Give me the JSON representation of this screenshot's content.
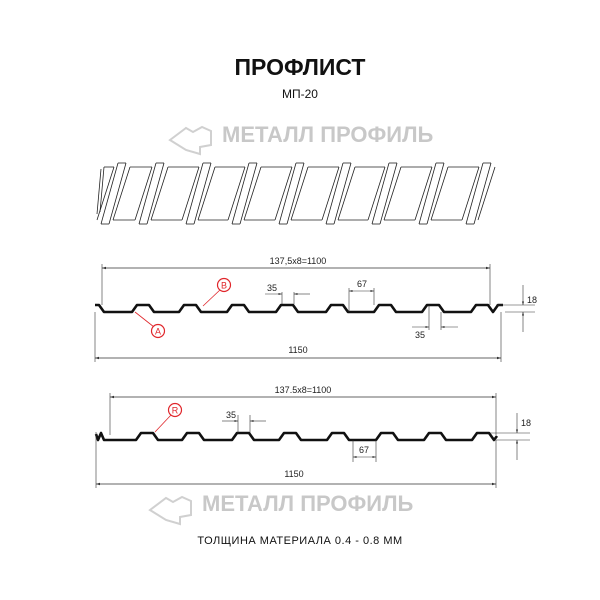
{
  "title": "ПРОФЛИСТ",
  "subtitle": "МП-20",
  "watermark": "МЕТАЛЛ ПРОФИЛЬ",
  "profile_a": {
    "width_label": "137,5x8=1100",
    "total_label": "1150",
    "top_label": "35",
    "bottom_label": "35",
    "pitch_label": "67",
    "height_label": "18",
    "marker_a": "A",
    "marker_b": "B"
  },
  "profile_r": {
    "width_label": "137.5x8=1100",
    "total_label": "1150",
    "top_label": "35",
    "pitch_label": "67",
    "height_label": "18",
    "marker_r": "R"
  },
  "footer": "ТОЛЩИНА МАТЕРИАЛА 0.4 - 0.8 ММ",
  "colors": {
    "line": "#111111",
    "dim": "#333333",
    "marker": "#e0262b",
    "watermark": "#c8c8c8"
  }
}
